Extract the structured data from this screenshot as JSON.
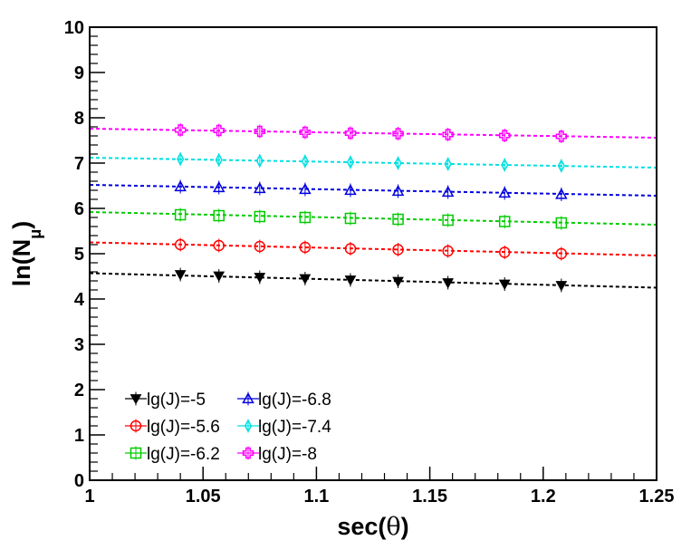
{
  "chart_data": {
    "type": "scatter",
    "title": "",
    "xlabel": "sec(θ)",
    "ylabel_main": "ln(N",
    "ylabel_sub": "μ",
    "ylabel_close": ")",
    "xlim": [
      1.0,
      1.25
    ],
    "ylim": [
      0,
      10
    ],
    "x_major_ticks": [
      1,
      1.05,
      1.1,
      1.15,
      1.2,
      1.25
    ],
    "x_tick_labels": [
      "1",
      "1.05",
      "1.1",
      "1.15",
      "1.2",
      "1.25"
    ],
    "y_major_ticks": [
      0,
      1,
      2,
      3,
      4,
      5,
      6,
      7,
      8,
      9,
      10
    ],
    "y_tick_labels": [
      "0",
      "1",
      "2",
      "3",
      "4",
      "5",
      "6",
      "7",
      "8",
      "9",
      "10"
    ],
    "grid": false,
    "legend_position": "bottom-left",
    "x": [
      1.04,
      1.057,
      1.075,
      1.095,
      1.115,
      1.136,
      1.158,
      1.183,
      1.208
    ],
    "series": [
      {
        "name": "lg(J)=-5",
        "color": "#000000",
        "marker": "triangle-down-filled",
        "values": [
          4.54,
          4.51,
          4.48,
          4.45,
          4.42,
          4.39,
          4.36,
          4.33,
          4.3
        ],
        "fit": [
          4.57,
          4.25
        ]
      },
      {
        "name": "lg(J)=-5.6",
        "color": "#ff0000",
        "marker": "circle-open",
        "values": [
          5.2,
          5.18,
          5.16,
          5.14,
          5.11,
          5.09,
          5.06,
          5.03,
          5.0
        ],
        "fit": [
          5.25,
          4.96
        ]
      },
      {
        "name": "lg(J)=-6.2",
        "color": "#00cc00",
        "marker": "square-open",
        "values": [
          5.86,
          5.84,
          5.82,
          5.8,
          5.78,
          5.76,
          5.74,
          5.71,
          5.68
        ],
        "fit": [
          5.92,
          5.64
        ]
      },
      {
        "name": "lg(J)=-6.8",
        "color": "#0000dd",
        "marker": "triangle-up-open",
        "values": [
          6.48,
          6.46,
          6.44,
          6.42,
          6.4,
          6.38,
          6.36,
          6.34,
          6.31
        ],
        "fit": [
          6.52,
          6.28
        ]
      },
      {
        "name": "lg(J)=-7.4",
        "color": "#00e0e0",
        "marker": "diamond-open",
        "values": [
          7.09,
          7.07,
          7.05,
          7.04,
          7.02,
          7.0,
          6.98,
          6.96,
          6.94
        ],
        "fit": [
          7.12,
          6.9
        ]
      },
      {
        "name": "lg(J)=-8",
        "color": "#ff00ff",
        "marker": "cross-open",
        "values": [
          7.73,
          7.72,
          7.7,
          7.68,
          7.66,
          7.65,
          7.63,
          7.61,
          7.59
        ],
        "fit": [
          7.76,
          7.56
        ]
      }
    ]
  }
}
